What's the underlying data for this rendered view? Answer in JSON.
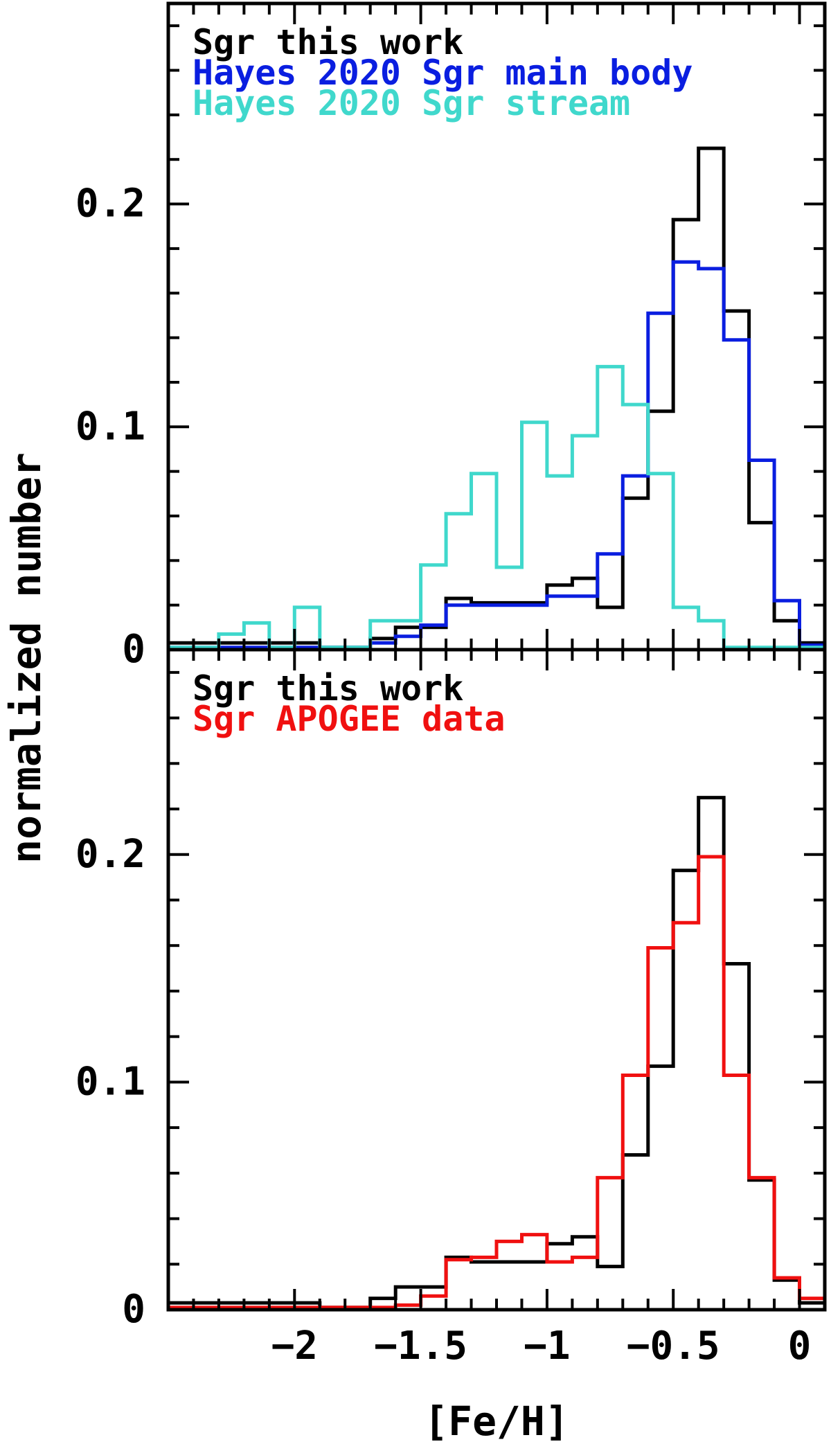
{
  "chart_data": [
    {
      "type": "step-histogram",
      "panel": "top",
      "xlim": [
        -2.5,
        0.1
      ],
      "ylim": [
        0,
        0.29
      ],
      "ylabel": "normalized number",
      "xlabel": "[Fe/H]",
      "y_ticks": [
        0,
        0.1,
        0.2
      ],
      "y_tick_labels": [
        "0",
        "0.1",
        "0.2"
      ],
      "bin_edges": [
        -2.5,
        -2.4,
        -2.3,
        -2.2,
        -2.1,
        -2.0,
        -1.9,
        -1.8,
        -1.7,
        -1.6,
        -1.5,
        -1.4,
        -1.3,
        -1.2,
        -1.1,
        -1.0,
        -0.9,
        -0.8,
        -0.7,
        -0.6,
        -0.5,
        -0.4,
        -0.3,
        -0.2,
        -0.1,
        0.0,
        0.1
      ],
      "legend_position": "top-left",
      "series": [
        {
          "name": "Sgr this work",
          "color": "#000000",
          "values": [
            0.003,
            0.003,
            0.003,
            0.003,
            0.003,
            0.003,
            0.001,
            0.001,
            0.005,
            0.01,
            0.01,
            0.023,
            0.021,
            0.021,
            0.021,
            0.029,
            0.032,
            0.019,
            0.068,
            0.107,
            0.193,
            0.225,
            0.152,
            0.057,
            0.013,
            0.003
          ]
        },
        {
          "name": "Hayes 2020 Sgr main body",
          "color": "#0a1ee0",
          "values": [
            0.001,
            0.001,
            0.001,
            0.001,
            0.001,
            0.001,
            0.001,
            0.001,
            0.003,
            0.006,
            0.011,
            0.02,
            0.02,
            0.02,
            0.02,
            0.024,
            0.024,
            0.043,
            0.078,
            0.151,
            0.174,
            0.171,
            0.139,
            0.085,
            0.022,
            0.002
          ]
        },
        {
          "name": "Hayes 2020 Sgr stream",
          "color": "#40d8cc",
          "values": [
            0.001,
            0.001,
            0.007,
            0.012,
            0.001,
            0.019,
            0.001,
            0.001,
            0.013,
            0.013,
            0.038,
            0.061,
            0.079,
            0.037,
            0.102,
            0.078,
            0.096,
            0.127,
            0.11,
            0.079,
            0.019,
            0.013,
            0.001,
            0.001,
            0.001,
            0.001
          ]
        }
      ]
    },
    {
      "type": "step-histogram",
      "panel": "bottom",
      "xlim": [
        -2.5,
        0.1
      ],
      "ylim": [
        0,
        0.29
      ],
      "xlabel": "[Fe/H]",
      "ylabel": "normalized number",
      "x_ticks": [
        -2,
        -1.5,
        -1,
        -0.5,
        0
      ],
      "x_tick_labels": [
        "−2",
        "−1.5",
        "−1",
        "−0.5",
        "0"
      ],
      "y_ticks": [
        0,
        0.1,
        0.2
      ],
      "y_tick_labels": [
        "0",
        "0.1",
        "0.2"
      ],
      "bin_edges": [
        -2.5,
        -2.4,
        -2.3,
        -2.2,
        -2.1,
        -2.0,
        -1.9,
        -1.8,
        -1.7,
        -1.6,
        -1.5,
        -1.4,
        -1.3,
        -1.2,
        -1.1,
        -1.0,
        -0.9,
        -0.8,
        -0.7,
        -0.6,
        -0.5,
        -0.4,
        -0.3,
        -0.2,
        -0.1,
        0.0,
        0.1
      ],
      "legend_position": "top-left",
      "series": [
        {
          "name": "Sgr this work",
          "color": "#000000",
          "values": [
            0.003,
            0.003,
            0.003,
            0.003,
            0.003,
            0.003,
            0.001,
            0.001,
            0.005,
            0.01,
            0.01,
            0.023,
            0.021,
            0.021,
            0.021,
            0.029,
            0.032,
            0.019,
            0.068,
            0.107,
            0.193,
            0.225,
            0.152,
            0.057,
            0.013,
            0.003
          ]
        },
        {
          "name": "Sgr APOGEE data",
          "color": "#f01010",
          "values": [
            0.001,
            0.001,
            0.001,
            0.001,
            0.001,
            0.001,
            0.001,
            0.001,
            0.001,
            0.002,
            0.006,
            0.022,
            0.023,
            0.03,
            0.033,
            0.021,
            0.023,
            0.058,
            0.103,
            0.159,
            0.17,
            0.199,
            0.103,
            0.058,
            0.014,
            0.005
          ]
        }
      ]
    }
  ]
}
